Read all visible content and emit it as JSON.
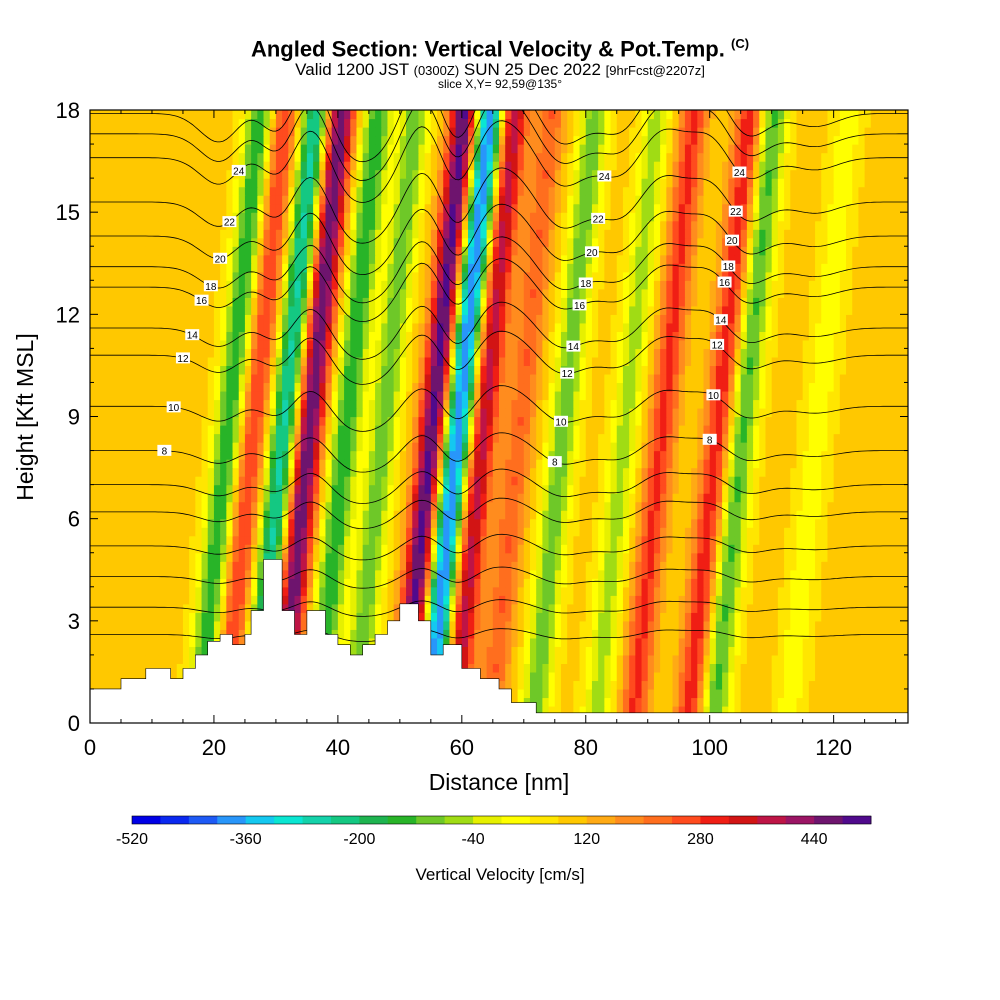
{
  "header": {
    "title": "Angled Section: Vertical Velocity & Pot.Temp.",
    "title_mark": "(C)",
    "valid_prefix": "Valid 1200 JST",
    "valid_utc": "(0300Z)",
    "valid_date": "SUN 25 Dec 2022",
    "valid_fcst": "[9hrFcst@2207z]",
    "slice": "slice X,Y= 92,59@135°"
  },
  "chart_data": {
    "type": "heatmap",
    "xlabel": "Distance [nm]",
    "ylabel": "Height [Kft MSL]",
    "xlim": [
      0,
      132
    ],
    "ylim": [
      0,
      18
    ],
    "x_ticks": [
      0,
      20,
      40,
      60,
      80,
      100,
      120
    ],
    "y_ticks": [
      0,
      3,
      6,
      9,
      12,
      15,
      18
    ],
    "colorbar": {
      "label": "Vertical Velocity [cm/s]",
      "min": -520,
      "max": 520,
      "step": 40,
      "tick_labels": [
        "-520",
        "-360",
        "-200",
        "-40",
        "120",
        "280",
        "440"
      ],
      "colors": [
        "#0000e6",
        "#0a28f0",
        "#1e5af5",
        "#2896fa",
        "#14c8f0",
        "#0ae6d2",
        "#14d2aa",
        "#14c882",
        "#1eb450",
        "#28b428",
        "#6ec828",
        "#a0dc14",
        "#e6f000",
        "#ffff00",
        "#ffe600",
        "#ffc800",
        "#ffaa14",
        "#ff8c1e",
        "#ff6e1e",
        "#ff4b1e",
        "#f01e14",
        "#d21414",
        "#be1446",
        "#9b1464",
        "#6e146e",
        "#500a8c"
      ]
    },
    "velocity_bands": [
      {
        "x": 22,
        "peak": -250
      },
      {
        "x": 26,
        "peak": 200
      },
      {
        "x": 31,
        "peak": -350
      },
      {
        "x": 35,
        "peak": 400
      },
      {
        "x": 41,
        "peak": -250
      },
      {
        "x": 47,
        "peak": -200
      },
      {
        "x": 55,
        "peak": 420
      },
      {
        "x": 59,
        "peak": -520
      },
      {
        "x": 63,
        "peak": 300
      },
      {
        "x": 69,
        "peak": 150
      },
      {
        "x": 76,
        "peak": -200
      },
      {
        "x": 86,
        "peak": -150
      },
      {
        "x": 92,
        "peak": 200
      },
      {
        "x": 101,
        "peak": 220
      },
      {
        "x": 105,
        "peak": -220
      },
      {
        "x": 117,
        "peak": -80
      }
    ],
    "theta_contours": [
      {
        "level": "8",
        "base_height": 8.0
      },
      {
        "level": "10",
        "base_height": 9.3
      },
      {
        "level": "12",
        "base_height": 10.8
      },
      {
        "level": "14",
        "base_height": 11.6
      },
      {
        "level": "16",
        "base_height": 12.8
      },
      {
        "level": "18",
        "base_height": 13.4
      },
      {
        "level": "20",
        "base_height": 14.3
      },
      {
        "level": "22",
        "base_height": 15.3
      },
      {
        "level": "24",
        "base_height": 16.6
      }
    ],
    "terrain": [
      [
        0,
        1.0
      ],
      [
        5,
        1.0
      ],
      [
        5,
        1.3
      ],
      [
        9,
        1.3
      ],
      [
        9,
        1.6
      ],
      [
        13,
        1.6
      ],
      [
        13,
        1.3
      ],
      [
        15,
        1.3
      ],
      [
        15,
        1.6
      ],
      [
        17,
        1.6
      ],
      [
        17,
        2.0
      ],
      [
        19,
        2.0
      ],
      [
        19,
        2.4
      ],
      [
        21,
        2.4
      ],
      [
        21,
        2.6
      ],
      [
        23,
        2.6
      ],
      [
        23,
        2.3
      ],
      [
        25,
        2.3
      ],
      [
        25,
        2.6
      ],
      [
        26,
        2.6
      ],
      [
        26,
        3.3
      ],
      [
        28,
        3.3
      ],
      [
        28,
        4.8
      ],
      [
        31,
        4.8
      ],
      [
        31,
        3.3
      ],
      [
        33,
        3.3
      ],
      [
        33,
        2.6
      ],
      [
        35,
        2.6
      ],
      [
        35,
        3.3
      ],
      [
        38,
        3.3
      ],
      [
        38,
        2.6
      ],
      [
        40,
        2.6
      ],
      [
        40,
        2.3
      ],
      [
        42,
        2.3
      ],
      [
        42,
        2.0
      ],
      [
        44,
        2.0
      ],
      [
        44,
        2.3
      ],
      [
        46,
        2.3
      ],
      [
        46,
        2.6
      ],
      [
        48,
        2.6
      ],
      [
        48,
        3.0
      ],
      [
        50,
        3.0
      ],
      [
        50,
        3.5
      ],
      [
        53,
        3.5
      ],
      [
        53,
        3.0
      ],
      [
        55,
        3.0
      ],
      [
        55,
        2.0
      ],
      [
        57,
        2.0
      ],
      [
        57,
        2.3
      ],
      [
        60,
        2.3
      ],
      [
        60,
        1.6
      ],
      [
        63,
        1.6
      ],
      [
        63,
        1.3
      ],
      [
        66,
        1.3
      ],
      [
        66,
        1.0
      ],
      [
        68,
        1.0
      ],
      [
        68,
        0.6
      ],
      [
        72,
        0.6
      ],
      [
        72,
        0.3
      ],
      [
        132,
        0.3
      ]
    ]
  }
}
